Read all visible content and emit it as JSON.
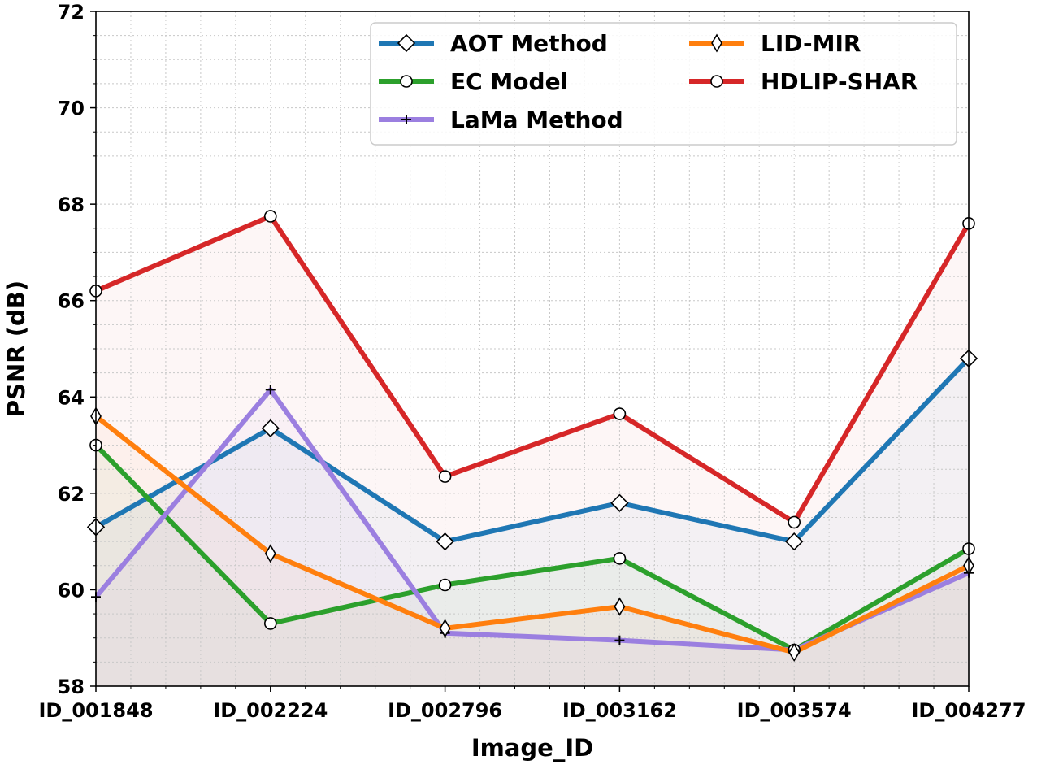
{
  "chart_data": {
    "type": "line",
    "title": "",
    "xlabel": "Image_ID",
    "ylabel": "PSNR (dB)",
    "ylim": [
      58,
      72
    ],
    "yticks": [
      58,
      60,
      62,
      64,
      66,
      68,
      70,
      72
    ],
    "grid": true,
    "legend_position": "top-right",
    "categories": [
      "ID_001848",
      "ID_002224",
      "ID_002796",
      "ID_003162",
      "ID_003574",
      "ID_004277"
    ],
    "series": [
      {
        "name": "AOT Method",
        "color": "#1f77b4",
        "marker": "diamond",
        "values": [
          61.3,
          63.35,
          61.0,
          61.8,
          61.0,
          64.8
        ]
      },
      {
        "name": "EC Model",
        "color": "#2ca02c",
        "marker": "circle",
        "values": [
          63.0,
          59.3,
          60.1,
          60.65,
          58.75,
          60.85
        ]
      },
      {
        "name": "LaMa Method",
        "color": "#9b7fe0",
        "marker": "plus",
        "values": [
          59.85,
          64.15,
          59.1,
          58.95,
          58.75,
          60.35
        ]
      },
      {
        "name": "LID-MIR",
        "color": "#ff7f0e",
        "marker": "thin-diamond",
        "values": [
          63.6,
          60.75,
          59.2,
          59.65,
          58.7,
          60.5
        ]
      },
      {
        "name": "HDLIP-SHAR",
        "color": "#d62728",
        "marker": "circle",
        "values": [
          66.2,
          67.75,
          62.35,
          63.65,
          61.4,
          67.6
        ]
      }
    ]
  }
}
